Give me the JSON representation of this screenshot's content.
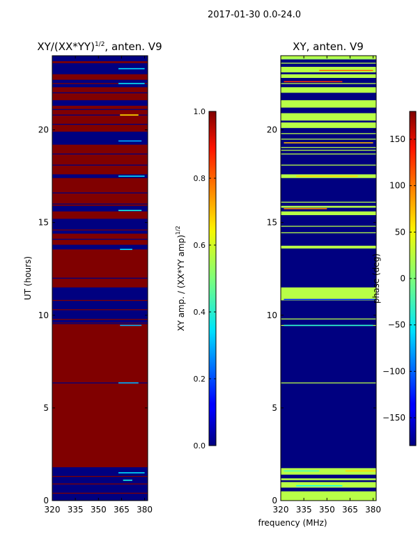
{
  "figure": {
    "suptitle": "2017-01-30 0.0-24.0"
  },
  "chart_data": [
    {
      "type": "heatmap",
      "title_main": "XY/(XX*YY)",
      "title_sup": "1/2",
      "title_rest": ", anten. V9",
      "xlabel": "",
      "ylabel": "UT (hours)",
      "xlim": [
        320,
        382
      ],
      "ylim": [
        0,
        24
      ],
      "xticks": [
        320,
        335,
        350,
        365,
        380
      ],
      "yticks": [
        0,
        5,
        10,
        15,
        20
      ],
      "colorbar": {
        "label_main": "XY amp. / (XX*YY amp)",
        "label_sup": "1/2",
        "range": [
          0.0,
          1.0
        ],
        "ticks": [
          "0.0",
          "0.2",
          "0.4",
          "0.6",
          "0.8",
          "1.0"
        ],
        "tick_values": [
          0.0,
          0.2,
          0.4,
          0.6,
          0.8,
          1.0
        ]
      },
      "background_value": 1.0,
      "bands": [
        {
          "y0": 0.0,
          "y1": 1.8,
          "v": 0.0
        },
        {
          "y0": 9.6,
          "y1": 9.75,
          "v": 0.0
        },
        {
          "y0": 9.8,
          "y1": 11.5,
          "v": 0.0
        },
        {
          "y0": 13.55,
          "y1": 13.8,
          "v": 0.0
        },
        {
          "y0": 14.4,
          "y1": 15.2,
          "v": 0.0
        },
        {
          "y0": 15.6,
          "y1": 15.9,
          "v": 0.0
        },
        {
          "y0": 17.4,
          "y1": 17.6,
          "v": 0.0
        },
        {
          "y0": 19.2,
          "y1": 19.9,
          "v": 0.0
        },
        {
          "y0": 21.3,
          "y1": 21.6,
          "v": 0.0
        },
        {
          "y0": 22.3,
          "y1": 22.7,
          "v": 0.0
        },
        {
          "y0": 23.0,
          "y1": 23.6,
          "v": 0.0
        },
        {
          "y0": 23.7,
          "y1": 24.0,
          "v": 0.0
        }
      ],
      "lines": [
        {
          "y": 0.4,
          "v": 1.0
        },
        {
          "y": 0.9,
          "v": 1.0
        },
        {
          "y": 1.3,
          "v": 1.0
        },
        {
          "y": 6.35,
          "v": 0.0
        },
        {
          "y": 9.55,
          "v": 0.0
        },
        {
          "y": 10.3,
          "v": 1.0
        },
        {
          "y": 10.8,
          "v": 1.0
        },
        {
          "y": 12.0,
          "v": 0.0
        },
        {
          "y": 14.1,
          "v": 0.0
        },
        {
          "y": 14.6,
          "v": 1.0
        },
        {
          "y": 16.0,
          "v": 0.0
        },
        {
          "y": 16.6,
          "v": 0.0
        },
        {
          "y": 18.1,
          "v": 0.0
        },
        {
          "y": 18.7,
          "v": 0.0
        },
        {
          "y": 20.3,
          "v": 0.0
        },
        {
          "y": 20.8,
          "v": 0.0
        },
        {
          "y": 21.1,
          "v": 0.0
        },
        {
          "y": 22.0,
          "v": 0.0
        },
        {
          "y": 22.5,
          "v": 1.0
        }
      ],
      "speckles": [
        {
          "y": 1.5,
          "x0": 363,
          "x1": 380,
          "v": 0.35
        },
        {
          "y": 1.1,
          "x0": 366,
          "x1": 372,
          "v": 0.4
        },
        {
          "y": 6.35,
          "x0": 363,
          "x1": 376,
          "v": 0.3
        },
        {
          "y": 9.45,
          "x0": 364,
          "x1": 378,
          "v": 0.3
        },
        {
          "y": 13.55,
          "x0": 364,
          "x1": 372,
          "v": 0.35
        },
        {
          "y": 15.65,
          "x0": 363,
          "x1": 378,
          "v": 0.4
        },
        {
          "y": 17.5,
          "x0": 363,
          "x1": 380,
          "v": 0.35
        },
        {
          "y": 19.4,
          "x0": 363,
          "x1": 378,
          "v": 0.3
        },
        {
          "y": 20.8,
          "x0": 364,
          "x1": 376,
          "v": 0.65
        },
        {
          "y": 22.5,
          "x0": 363,
          "x1": 380,
          "v": 0.35
        },
        {
          "y": 23.3,
          "x0": 363,
          "x1": 380,
          "v": 0.35
        }
      ]
    },
    {
      "type": "heatmap",
      "title_main": "XY, anten. V9",
      "title_sup": "",
      "title_rest": "",
      "xlabel": "frequency (MHz)",
      "ylabel": "",
      "xlim": [
        320,
        382
      ],
      "ylim": [
        0,
        24
      ],
      "xticks": [
        320,
        335,
        350,
        365,
        380
      ],
      "yticks": [
        0,
        5,
        10,
        15,
        20
      ],
      "colorbar": {
        "label_main": "phase (deg)",
        "label_sup": "",
        "range": [
          -180,
          180
        ],
        "ticks": [
          "−150",
          "−100",
          "−50",
          "0",
          "50",
          "100",
          "150"
        ],
        "tick_values": [
          -150,
          -100,
          -50,
          0,
          50,
          100,
          150
        ]
      },
      "background_value": -180,
      "bands": [
        {
          "y0": 0.0,
          "y1": 0.5,
          "v": 20
        },
        {
          "y0": 0.7,
          "y1": 1.0,
          "v": 20
        },
        {
          "y0": 1.1,
          "y1": 1.2,
          "v": 20
        },
        {
          "y0": 1.4,
          "y1": 1.75,
          "v": 20
        },
        {
          "y0": 10.8,
          "y1": 11.5,
          "v": 20
        },
        {
          "y0": 13.6,
          "y1": 13.75,
          "v": 20
        },
        {
          "y0": 15.4,
          "y1": 15.6,
          "v": 20
        },
        {
          "y0": 15.8,
          "y1": 15.9,
          "v": 20
        },
        {
          "y0": 17.4,
          "y1": 17.6,
          "v": 20
        },
        {
          "y0": 20.1,
          "y1": 20.4,
          "v": 20
        },
        {
          "y0": 20.5,
          "y1": 20.9,
          "v": 20
        },
        {
          "y0": 21.2,
          "y1": 21.6,
          "v": 20
        },
        {
          "y0": 22.0,
          "y1": 22.3,
          "v": 20
        },
        {
          "y0": 22.8,
          "y1": 23.0,
          "v": 20
        },
        {
          "y0": 23.1,
          "y1": 23.4,
          "v": 20
        },
        {
          "y0": 23.8,
          "y1": 24.0,
          "v": 20
        }
      ],
      "lines": [
        {
          "y": 6.35,
          "v": 20
        },
        {
          "y": 9.45,
          "v": 20
        },
        {
          "y": 9.8,
          "v": 20
        },
        {
          "y": 14.45,
          "v": 20
        },
        {
          "y": 14.8,
          "v": 20
        },
        {
          "y": 16.1,
          "v": 20
        },
        {
          "y": 18.1,
          "v": 20
        },
        {
          "y": 18.7,
          "v": 20
        },
        {
          "y": 18.9,
          "v": 20
        },
        {
          "y": 19.05,
          "v": 20
        },
        {
          "y": 19.5,
          "v": 20
        },
        {
          "y": 19.8,
          "v": 20
        },
        {
          "y": 22.5,
          "v": 20
        },
        {
          "y": 23.6,
          "v": 20
        }
      ],
      "speckles": [
        {
          "y": 1.6,
          "x0": 322,
          "x1": 345,
          "v": -20
        },
        {
          "y": 1.6,
          "x0": 362,
          "x1": 382,
          "v": 60
        },
        {
          "y": 0.8,
          "x0": 330,
          "x1": 360,
          "v": -40
        },
        {
          "y": 9.45,
          "x0": 322,
          "x1": 380,
          "v": -30
        },
        {
          "y": 10.85,
          "x0": 322,
          "x1": 382,
          "v": -120
        },
        {
          "y": 15.75,
          "x0": 322,
          "x1": 350,
          "v": 90
        },
        {
          "y": 17.5,
          "x0": 330,
          "x1": 370,
          "v": 60
        },
        {
          "y": 19.3,
          "x0": 322,
          "x1": 380,
          "v": 70
        },
        {
          "y": 22.6,
          "x0": 322,
          "x1": 360,
          "v": 120
        },
        {
          "y": 23.2,
          "x0": 345,
          "x1": 380,
          "v": 100
        },
        {
          "y": 23.85,
          "x0": 322,
          "x1": 380,
          "v": 10
        }
      ]
    }
  ]
}
